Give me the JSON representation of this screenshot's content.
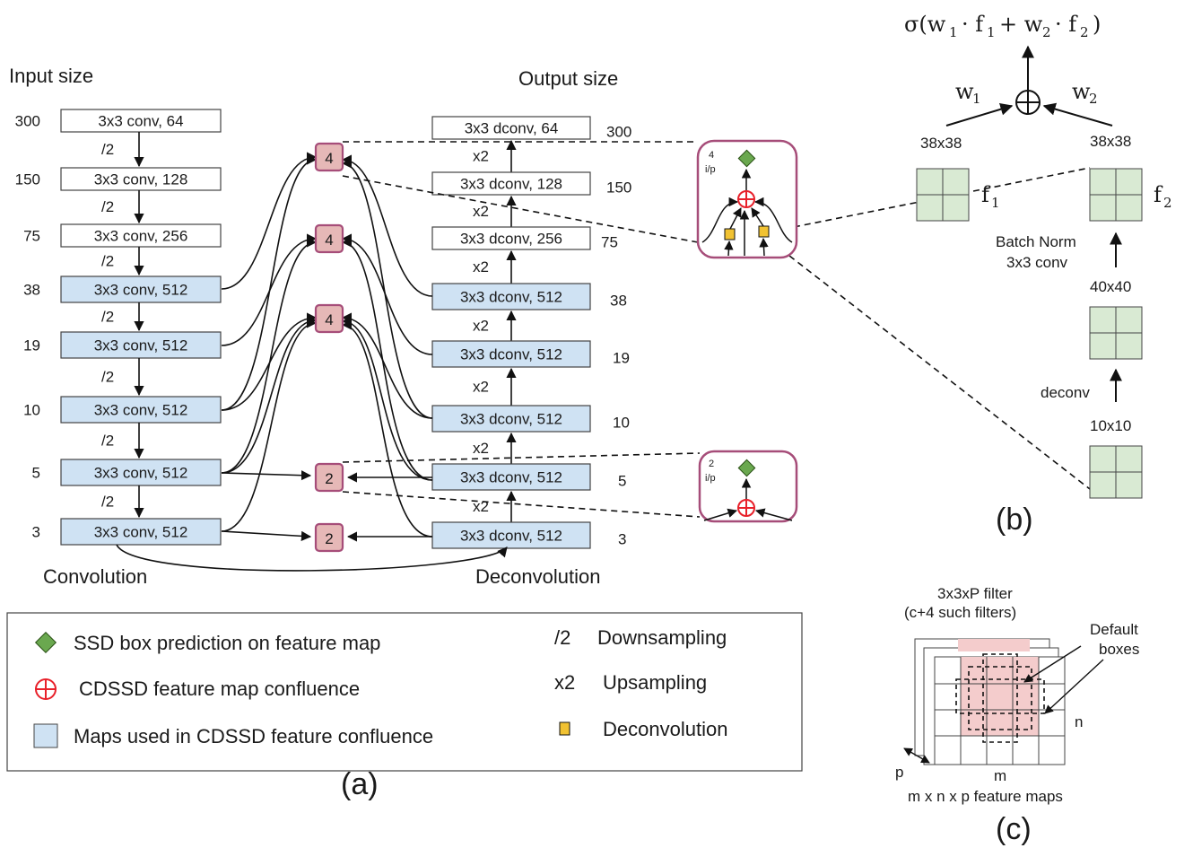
{
  "colors": {
    "conv_blue": "#cfe2f3",
    "box_pink": "#e6b8b7",
    "box_pink_border": "#a64d79",
    "green": "#6aa84f",
    "red": "#e8202a",
    "yellow": "#f1c232",
    "grid_green": "#d9ead3",
    "filter_pink": "#f4cccc"
  },
  "panel_a": {
    "input_size_label": "Input size",
    "output_size_label": "Output size",
    "convolution_label": "Convolution",
    "deconvolution_label": "Deconvolution",
    "caption": "(a)",
    "conv_layers": [
      {
        "size": "300",
        "label": "3x3 conv, 64",
        "highlight": false
      },
      {
        "size": "150",
        "label": "3x3 conv, 128",
        "highlight": false
      },
      {
        "size": "75",
        "label": "3x3 conv, 256",
        "highlight": false
      },
      {
        "size": "38",
        "label": "3x3 conv, 512",
        "highlight": true
      },
      {
        "size": "19",
        "label": "3x3 conv, 512",
        "highlight": true
      },
      {
        "size": "10",
        "label": "3x3 conv, 512",
        "highlight": true
      },
      {
        "size": "5",
        "label": "3x3 conv, 512",
        "highlight": true
      },
      {
        "size": "3",
        "label": "3x3 conv, 512",
        "highlight": true
      }
    ],
    "downsample_labels": [
      "/2",
      "/2",
      "/2",
      "/2",
      "/2",
      "/2",
      "/2"
    ],
    "deconv_layers": [
      {
        "size": "300",
        "label": "3x3 dconv, 64",
        "highlight": false
      },
      {
        "size": "150",
        "label": "3x3 dconv, 128",
        "highlight": false
      },
      {
        "size": "75",
        "label": "3x3 dconv, 256",
        "highlight": false
      },
      {
        "size": "38",
        "label": "3x3 dconv, 512",
        "highlight": true
      },
      {
        "size": "19",
        "label": "3x3 dconv, 512",
        "highlight": true
      },
      {
        "size": "10",
        "label": "3x3 dconv, 512",
        "highlight": true
      },
      {
        "size": "5",
        "label": "3x3 dconv, 512",
        "highlight": true
      },
      {
        "size": "3",
        "label": "3x3 dconv, 512",
        "highlight": true
      }
    ],
    "upsample_labels": [
      "x2",
      "x2",
      "x2",
      "x2",
      "x2",
      "x2",
      "x2"
    ],
    "fusion_nodes": [
      "4",
      "4",
      "4",
      "2",
      "2"
    ],
    "zoom_large": {
      "count": "4",
      "sub": "i/p"
    },
    "zoom_small": {
      "count": "2",
      "sub": "i/p"
    }
  },
  "legend": {
    "items": [
      {
        "icon": "green-diamond-icon",
        "text": "SSD box prediction on feature map"
      },
      {
        "icon": "red-circle-plus-icon",
        "text": "CDSSD feature map confluence"
      },
      {
        "icon": "blue-square-icon",
        "text": "Maps used in CDSSD feature confluence"
      },
      {
        "symbol": "/2",
        "text": "Downsampling"
      },
      {
        "symbol": "x2",
        "text": "Upsampling"
      },
      {
        "icon": "yellow-square-icon",
        "text": "Deconvolution"
      }
    ]
  },
  "panel_b": {
    "caption": "(b)",
    "w1": "w",
    "w1_sub": "1",
    "w2": "w",
    "w2_sub": "2",
    "f1": "f",
    "f1_sub": "1",
    "f2": "f",
    "f2_sub": "2",
    "size_left": "38x38",
    "size_right": "38x38",
    "batch_norm": "Batch Norm",
    "conv_label": "3x3 conv",
    "size_mid": "40x40",
    "deconv_label": "deconv",
    "size_bottom": "10x10"
  },
  "panel_c": {
    "caption": "(c)",
    "filter_label": "3x3xP filter",
    "filter_count": "(c+4 such filters)",
    "default_boxes_1": "Default",
    "default_boxes_2": "boxes",
    "n_label": "n",
    "m_label": "m",
    "p_label": "p",
    "maps_label": "m x n x p  feature maps"
  }
}
